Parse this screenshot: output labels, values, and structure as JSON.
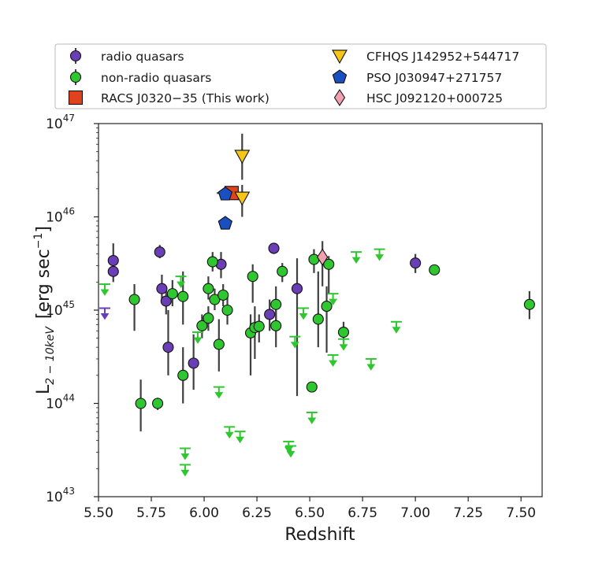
{
  "chart_data": {
    "type": "scatter",
    "xlabel": "Redshift",
    "ylabel_main": "L",
    "ylabel_sub": "2 − 10keV",
    "ylabel_unit": "[erg sec",
    "ylabel_unit_exp": "−1",
    "ylabel_unit_close": "]",
    "y_scale": "log",
    "xlim": [
      5.5,
      7.6
    ],
    "ylim": [
      1e+43,
      1e+47
    ],
    "x_ticks": [
      "5.50",
      "5.75",
      "6.00",
      "6.25",
      "6.50",
      "6.75",
      "7.00",
      "7.25",
      "7.50"
    ],
    "x_tick_values": [
      5.5,
      5.75,
      6.0,
      6.25,
      6.5,
      6.75,
      7.0,
      7.25,
      7.5
    ],
    "y_tick_base": "10",
    "y_tick_exponents": [
      "43",
      "44",
      "45",
      "46",
      "47"
    ],
    "legend_position": "above plot",
    "colors": {
      "radio": "#6a3fb5",
      "nonradio": "#2fc72f",
      "racs": "#e0421c",
      "cfhqs": "#f5c518",
      "pso": "#1a4fc0",
      "hsc": "#f0a0b0",
      "errorbar": "#404040"
    },
    "series": [
      {
        "name": "radio quasars",
        "marker": "circle",
        "points": [
          {
            "x": 5.57,
            "y": 3.4e+45,
            "ylo": 2.6e+45,
            "yhi": 5.2e+45
          },
          {
            "x": 5.57,
            "y": 2.6e+45,
            "ylo": 2e+45,
            "yhi": 3.2e+45
          },
          {
            "x": 5.79,
            "y": 4.2e+45,
            "ylo": 3.6e+45,
            "yhi": 5e+45
          },
          {
            "x": 5.8,
            "y": 1.7e+45,
            "ylo": 1.2e+45,
            "yhi": 2.4e+45
          },
          {
            "x": 5.82,
            "y": 1.25e+45,
            "ylo": 9e+44,
            "yhi": 1.8e+45
          },
          {
            "x": 5.83,
            "y": 4e+44,
            "ylo": 2e+44,
            "yhi": 1e+45
          },
          {
            "x": 5.95,
            "y": 2.7e+44,
            "ylo": 1.4e+44,
            "yhi": 5.5e+44
          },
          {
            "x": 6.08,
            "y": 3.1e+45,
            "ylo": 2.2e+45,
            "yhi": 4.2e+45
          },
          {
            "x": 6.31,
            "y": 9e+44,
            "ylo": 6e+44,
            "yhi": 1.3e+45
          },
          {
            "x": 6.33,
            "y": 4.6e+45,
            "ylo": 4e+45,
            "yhi": 5.2e+45
          },
          {
            "x": 6.44,
            "y": 1.7e+45,
            "ylo": 1.2e+44,
            "yhi": 3.6e+45
          },
          {
            "x": 7.0,
            "y": 3.2e+45,
            "ylo": 2.5e+45,
            "yhi": 4e+45
          }
        ],
        "upper_limits": [
          {
            "x": 5.53,
            "y": 1.05e+45
          }
        ]
      },
      {
        "name": "non-radio quasars",
        "marker": "circle",
        "points": [
          {
            "x": 5.67,
            "y": 1.3e+45,
            "ylo": 6e+44,
            "yhi": 1.9e+45
          },
          {
            "x": 5.7,
            "y": 1e+44,
            "ylo": 5e+43,
            "yhi": 1.8e+44
          },
          {
            "x": 5.78,
            "y": 1e+44,
            "ylo": 8.5e+43,
            "yhi": 1.15e+44
          },
          {
            "x": 5.85,
            "y": 1.5e+45,
            "ylo": 1.1e+45,
            "yhi": 2.1e+45
          },
          {
            "x": 5.9,
            "y": 2e+44,
            "ylo": 1e+44,
            "yhi": 4e+44
          },
          {
            "x": 5.9,
            "y": 1.4e+45,
            "ylo": 7e+44,
            "yhi": 2.6e+45
          },
          {
            "x": 5.99,
            "y": 6.8e+44,
            "ylo": 5e+44,
            "yhi": 9e+44
          },
          {
            "x": 6.02,
            "y": 8.2e+44,
            "ylo": 6e+44,
            "yhi": 1.1e+45
          },
          {
            "x": 6.02,
            "y": 1.7e+45,
            "ylo": 1.3e+45,
            "yhi": 2.3e+45
          },
          {
            "x": 6.04,
            "y": 3.3e+45,
            "ylo": 2.6e+45,
            "yhi": 4.2e+45
          },
          {
            "x": 6.05,
            "y": 1.3e+45,
            "ylo": 1e+45,
            "yhi": 1.7e+45
          },
          {
            "x": 6.07,
            "y": 4.3e+44,
            "ylo": 2.2e+44,
            "yhi": 8e+44
          },
          {
            "x": 6.09,
            "y": 1.45e+45,
            "ylo": 1.1e+45,
            "yhi": 1.9e+45
          },
          {
            "x": 6.11,
            "y": 1e+45,
            "ylo": 7e+44,
            "yhi": 1.4e+45
          },
          {
            "x": 6.23,
            "y": 2.3e+45,
            "ylo": 1.2e+45,
            "yhi": 3.1e+45
          },
          {
            "x": 6.22,
            "y": 5.7e+44,
            "ylo": 2e+44,
            "yhi": 9e+44
          },
          {
            "x": 6.24,
            "y": 6.5e+44,
            "ylo": 3e+44,
            "yhi": 1.1e+45
          },
          {
            "x": 6.26,
            "y": 6.7e+44,
            "ylo": 4.5e+44,
            "yhi": 9e+44
          },
          {
            "x": 6.34,
            "y": 6.8e+44,
            "ylo": 4e+44,
            "yhi": 1.2e+45
          },
          {
            "x": 6.34,
            "y": 1.15e+45,
            "ylo": 7e+44,
            "yhi": 1.8e+45
          },
          {
            "x": 6.37,
            "y": 2.6e+45,
            "ylo": 2e+45,
            "yhi": 3.2e+45
          },
          {
            "x": 6.51,
            "y": 1.5e+44,
            "ylo": 1.35e+44,
            "yhi": 1.65e+44
          },
          {
            "x": 6.52,
            "y": 3.5e+45,
            "ylo": 2.5e+45,
            "yhi": 4.5e+45
          },
          {
            "x": 6.54,
            "y": 8e+44,
            "ylo": 4e+44,
            "yhi": 2.6e+45
          },
          {
            "x": 6.58,
            "y": 1.1e+45,
            "ylo": 3.5e+44,
            "yhi": 1.8e+45
          },
          {
            "x": 6.59,
            "y": 3.1e+45,
            "ylo": 1.5e+45,
            "yhi": 3.8e+45
          },
          {
            "x": 6.66,
            "y": 5.8e+44,
            "ylo": 4.5e+44,
            "yhi": 7.5e+44
          },
          {
            "x": 7.09,
            "y": 2.7e+45,
            "ylo": 2.4e+45,
            "yhi": 3e+45
          },
          {
            "x": 7.54,
            "y": 1.15e+45,
            "ylo": 8e+44,
            "yhi": 1.6e+45
          }
        ],
        "upper_limits": [
          {
            "x": 5.53,
            "y": 1.9e+45
          },
          {
            "x": 5.89,
            "y": 2.3e+45
          },
          {
            "x": 5.97,
            "y": 5.8e+44
          },
          {
            "x": 6.07,
            "y": 1.5e+44
          },
          {
            "x": 5.91,
            "y": 3.3e+43
          },
          {
            "x": 5.91,
            "y": 2.2e+43
          },
          {
            "x": 6.12,
            "y": 5.6e+43
          },
          {
            "x": 6.17,
            "y": 5e+43
          },
          {
            "x": 6.4,
            "y": 3.9e+43
          },
          {
            "x": 6.41,
            "y": 3.5e+43
          },
          {
            "x": 6.43,
            "y": 5.2e+44
          },
          {
            "x": 6.47,
            "y": 1.05e+45
          },
          {
            "x": 6.51,
            "y": 8e+43
          },
          {
            "x": 6.61,
            "y": 1.5e+45
          },
          {
            "x": 6.61,
            "y": 3.3e+44
          },
          {
            "x": 6.66,
            "y": 4.9e+44
          },
          {
            "x": 6.72,
            "y": 4.2e+45
          },
          {
            "x": 6.79,
            "y": 3e+44
          },
          {
            "x": 6.83,
            "y": 4.5e+45
          },
          {
            "x": 6.91,
            "y": 7.5e+44
          }
        ]
      },
      {
        "name": "RACS J0320−35 (This work)",
        "marker": "square",
        "points": [
          {
            "x": 6.13,
            "y": 1.8e+46,
            "ylo": 1.6e+46,
            "yhi": 2e+46,
            "xlo": 6.06,
            "xhi": 6.18
          }
        ]
      },
      {
        "name": "CFHQS J142952+544717",
        "marker": "triangle-down",
        "points": [
          {
            "x": 6.18,
            "y": 4.5e+46,
            "ylo": 2.5e+46,
            "yhi": 7.8e+46
          },
          {
            "x": 6.18,
            "y": 1.6e+46,
            "ylo": 1e+46,
            "yhi": 2.2e+46
          }
        ]
      },
      {
        "name": "PSO J030947+271757",
        "marker": "pentagon",
        "points": [
          {
            "x": 6.1,
            "y": 1.75e+46
          },
          {
            "x": 6.1,
            "y": 8.5e+45
          }
        ]
      },
      {
        "name": "HSC J092120+000725",
        "marker": "diamond",
        "points": [
          {
            "x": 6.56,
            "y": 3.7e+45,
            "ylo": 1.8e+45,
            "yhi": 5.5e+45
          }
        ]
      }
    ]
  }
}
